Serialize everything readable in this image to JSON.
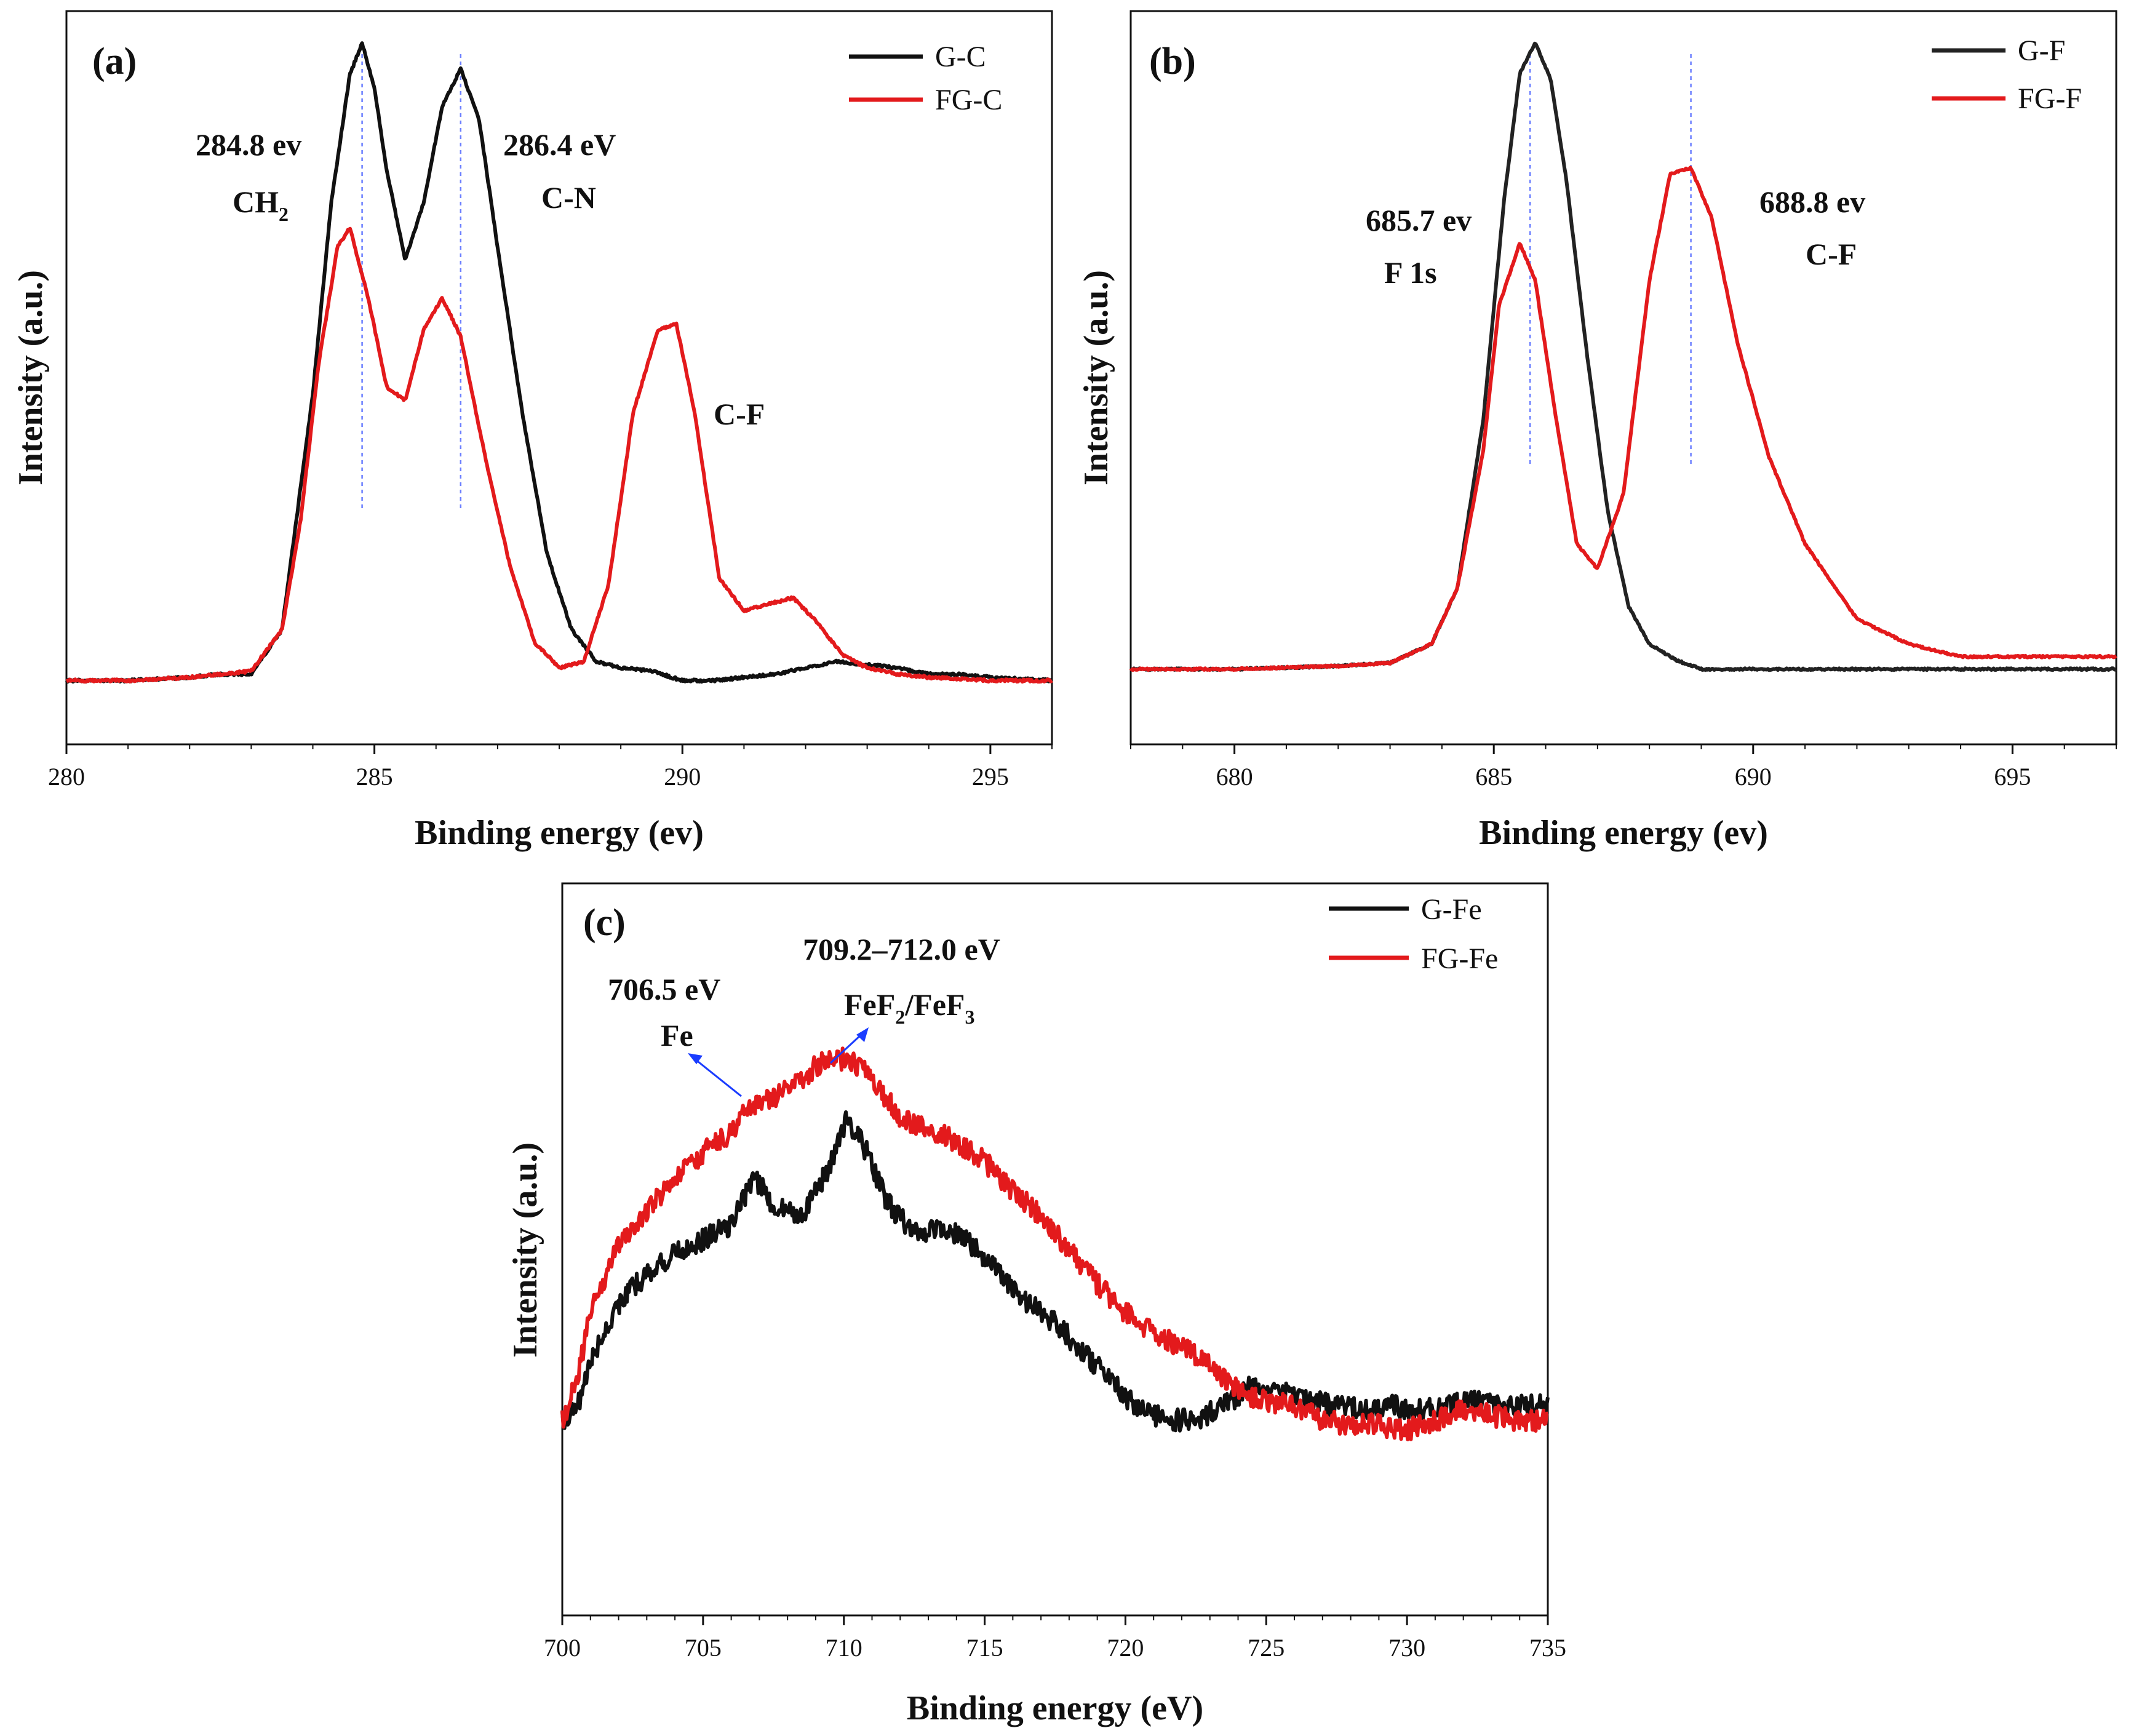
{
  "figure": {
    "panel_a": {
      "label": "(a)"
    },
    "panel_b": {
      "label": "(b)"
    },
    "panel_c": {
      "label": "(c)"
    }
  },
  "chart_data": [
    {
      "id": "a",
      "type": "line",
      "xlabel": "Binding energy (ev)",
      "ylabel": "Intensity (a.u.)",
      "xlim": [
        280,
        296
      ],
      "ylim": [
        -0.1,
        1.05
      ],
      "xticks": [
        280,
        285,
        290,
        295
      ],
      "grid": false,
      "legend_position": "top-right",
      "series": [
        {
          "name": "G-C",
          "color": "#111111",
          "x": [
            280,
            281,
            282,
            282.5,
            283,
            283.5,
            284,
            284.3,
            284.6,
            284.8,
            285.0,
            285.2,
            285.5,
            285.8,
            286.1,
            286.4,
            286.7,
            287.0,
            287.4,
            287.8,
            288.2,
            288.6,
            289,
            289.5,
            290,
            290.5,
            291,
            291.5,
            292,
            292.5,
            293,
            293.5,
            294,
            294.5,
            295,
            296
          ],
          "values": [
            0,
            0,
            0.005,
            0.01,
            0.01,
            0.08,
            0.45,
            0.75,
            0.95,
            1.0,
            0.93,
            0.8,
            0.66,
            0.75,
            0.9,
            0.96,
            0.88,
            0.68,
            0.42,
            0.2,
            0.08,
            0.03,
            0.02,
            0.015,
            0.0,
            0.0,
            0.005,
            0.01,
            0.02,
            0.03,
            0.025,
            0.02,
            0.01,
            0.01,
            0.005,
            0.0
          ]
        },
        {
          "name": "FG-C",
          "color": "#e31a1c",
          "x": [
            280,
            281,
            282,
            283,
            283.5,
            283.8,
            284.1,
            284.4,
            284.6,
            284.9,
            285.2,
            285.5,
            285.8,
            286.1,
            286.4,
            286.8,
            287.2,
            287.6,
            288.0,
            288.4,
            288.8,
            289.2,
            289.6,
            289.9,
            290.2,
            290.6,
            291.0,
            291.4,
            291.8,
            292.2,
            292.6,
            293,
            293.5,
            294,
            295,
            296
          ],
          "values": [
            0,
            0,
            0.005,
            0.015,
            0.08,
            0.25,
            0.5,
            0.68,
            0.71,
            0.6,
            0.46,
            0.44,
            0.55,
            0.6,
            0.54,
            0.35,
            0.18,
            0.06,
            0.02,
            0.03,
            0.15,
            0.42,
            0.55,
            0.56,
            0.42,
            0.16,
            0.11,
            0.12,
            0.13,
            0.09,
            0.04,
            0.02,
            0.01,
            0.005,
            0.0,
            0.0
          ]
        }
      ],
      "annotations": [
        {
          "text": "284.8 ev",
          "sub_text": "CH",
          "subscript": "2",
          "x": 284.8
        },
        {
          "text": "286.4 eV",
          "sub_text": "C-N",
          "x": 286.4
        },
        {
          "text": "C-F",
          "x": 291.2
        }
      ]
    },
    {
      "id": "b",
      "type": "line",
      "xlabel": "Binding energy (ev)",
      "ylabel": "Intensity (a.u.)",
      "xlim": [
        678,
        697
      ],
      "ylim": [
        -0.12,
        1.05
      ],
      "xticks": [
        680,
        685,
        690,
        695
      ],
      "grid": false,
      "legend_position": "top-right",
      "series": [
        {
          "name": "G-F",
          "color": "#222222",
          "x": [
            678,
            680,
            682,
            683,
            683.8,
            684.3,
            684.8,
            685.2,
            685.5,
            685.8,
            686.1,
            686.4,
            686.8,
            687.2,
            687.6,
            688,
            688.5,
            689,
            690,
            692,
            694,
            697
          ],
          "values": [
            0,
            0,
            0.005,
            0.01,
            0.04,
            0.13,
            0.4,
            0.75,
            0.95,
            1.0,
            0.94,
            0.78,
            0.5,
            0.25,
            0.1,
            0.04,
            0.015,
            0.0,
            0.0,
            0.0,
            0.0,
            0.0
          ]
        },
        {
          "name": "FG-F",
          "color": "#e31a1c",
          "x": [
            678,
            680,
            682,
            683,
            683.8,
            684.3,
            684.8,
            685.1,
            685.5,
            685.8,
            686.2,
            686.6,
            687.0,
            687.5,
            688.0,
            688.4,
            688.8,
            689.2,
            689.7,
            690.3,
            691,
            692,
            693,
            694,
            695,
            697
          ],
          "values": [
            0,
            0,
            0.005,
            0.01,
            0.04,
            0.13,
            0.35,
            0.58,
            0.68,
            0.62,
            0.4,
            0.2,
            0.16,
            0.28,
            0.62,
            0.79,
            0.8,
            0.72,
            0.52,
            0.34,
            0.2,
            0.08,
            0.04,
            0.02,
            0.02,
            0.02
          ]
        }
      ],
      "annotations": [
        {
          "text": "685.7 ev",
          "sub_text": "F 1s",
          "x": 685.7
        },
        {
          "text": "688.8 ev",
          "sub_text": "C-F",
          "x": 688.8
        }
      ]
    },
    {
      "id": "c",
      "type": "line",
      "xlabel": "Binding energy (eV)",
      "ylabel": "Intensity (a.u.)",
      "xlim": [
        700,
        735
      ],
      "ylim": [
        -0.4,
        1.1
      ],
      "xticks": [
        700,
        705,
        710,
        715,
        720,
        725,
        730,
        735
      ],
      "grid": false,
      "legend_position": "top-right",
      "series": [
        {
          "name": "G-Fe",
          "color": "#111111",
          "x": [
            700,
            700.5,
            701,
            702,
            703,
            704,
            705,
            706,
            706.8,
            707.5,
            708.5,
            709.5,
            710.1,
            710.8,
            711.5,
            712.5,
            713.5,
            714.5,
            715.5,
            716.5,
            717.5,
            718.5,
            719.5,
            720.5,
            721.5,
            722.5,
            723.5,
            724.5,
            725.5,
            726.5,
            727.5,
            728.5,
            729.5,
            730.5,
            731.5,
            732.5,
            733.5,
            735
          ],
          "values": [
            0.0,
            0.02,
            0.12,
            0.24,
            0.3,
            0.34,
            0.37,
            0.4,
            0.5,
            0.44,
            0.42,
            0.52,
            0.62,
            0.55,
            0.45,
            0.38,
            0.4,
            0.36,
            0.3,
            0.24,
            0.2,
            0.14,
            0.08,
            0.02,
            0.0,
            0.0,
            0.03,
            0.07,
            0.06,
            0.04,
            0.03,
            0.02,
            0.03,
            0.02,
            0.03,
            0.04,
            0.03,
            0.03
          ]
        },
        {
          "name": "FG-Fe",
          "color": "#e31a1c",
          "x": [
            700,
            700.5,
            701,
            702,
            703,
            704,
            705,
            706,
            706.5,
            707.5,
            708.5,
            709.3,
            710.2,
            711,
            712,
            713,
            714,
            715,
            716,
            717,
            718,
            719,
            720,
            721,
            722,
            723,
            724,
            725,
            726,
            727,
            728,
            729,
            730,
            731,
            732,
            733,
            734,
            735
          ],
          "values": [
            0.0,
            0.08,
            0.22,
            0.36,
            0.43,
            0.49,
            0.55,
            0.59,
            0.63,
            0.66,
            0.7,
            0.74,
            0.74,
            0.7,
            0.62,
            0.6,
            0.57,
            0.53,
            0.47,
            0.42,
            0.35,
            0.28,
            0.22,
            0.18,
            0.15,
            0.11,
            0.06,
            0.04,
            0.03,
            0.0,
            -0.01,
            -0.01,
            -0.02,
            0.0,
            0.02,
            0.01,
            0.0,
            0.0
          ]
        }
      ],
      "annotations": [
        {
          "text": "706.5 eV",
          "sub_text": "Fe",
          "x": 706.5
        },
        {
          "text": "709.2–712.0 eV",
          "sub_text": "FeF",
          "sub1": "2",
          "mid": "/FeF",
          "sub2": "3",
          "x": 709.5
        }
      ]
    }
  ]
}
